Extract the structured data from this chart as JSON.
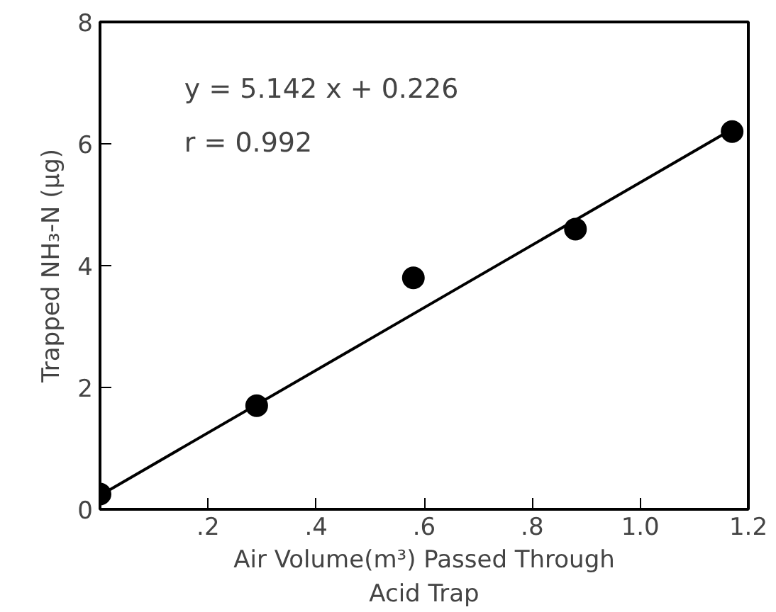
{
  "chart_data": {
    "type": "scatter",
    "xlabel": "Air Volume(m³) Passed Through\nAcid Trap",
    "ylabel": "Trapped NH₃-N (μg)",
    "annotations": [
      "y = 5.142 x + 0.226",
      "r = 0.992"
    ],
    "xlim": [
      0,
      1.2
    ],
    "ylim": [
      0,
      8
    ],
    "xticks": [
      {
        "value": 0.2,
        "label": ".2"
      },
      {
        "value": 0.4,
        "label": ".4"
      },
      {
        "value": 0.6,
        "label": ".6"
      },
      {
        "value": 0.8,
        "label": ".8"
      },
      {
        "value": 1.0,
        "label": "1.0"
      },
      {
        "value": 1.2,
        "label": "1.2"
      }
    ],
    "yticks": [
      0,
      2,
      4,
      6,
      8
    ],
    "grid": false,
    "marker": "circle",
    "series": [
      {
        "color": "#000000",
        "x": [
          0.0,
          0.29,
          0.58,
          0.88,
          1.17
        ],
        "values": [
          0.25,
          1.7,
          3.8,
          4.6,
          6.2
        ]
      },
      {
        "type": "line",
        "color": "#000000",
        "line_style": "solid",
        "marker": "none",
        "x": [
          0.01,
          1.18
        ],
        "values": [
          0.28,
          6.29
        ]
      }
    ]
  }
}
